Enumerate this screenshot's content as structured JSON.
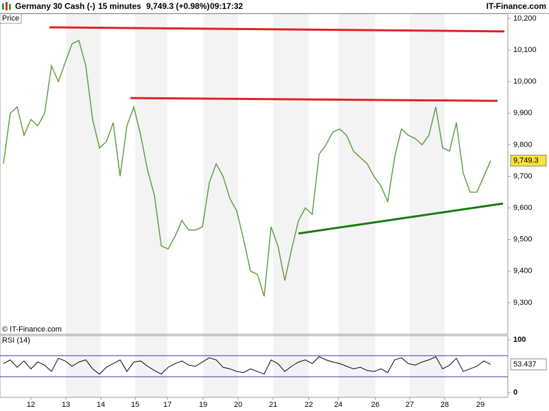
{
  "header": {
    "instrument": "Germany 30 Cash (-)",
    "interval": "15 minutes",
    "quote": "9,749.3 (+0.98%)",
    "time": "09:17:32",
    "brand": "IT-Finance.com",
    "copyright": "© IT-Finance.com"
  },
  "chart_data": [
    {
      "type": "line",
      "title": "Price",
      "color": "#5f9f3f",
      "values": [
        9740,
        9900,
        9920,
        9830,
        9880,
        9860,
        9900,
        10050,
        10000,
        10060,
        10120,
        10130,
        10050,
        9880,
        9790,
        9810,
        9870,
        9700,
        9860,
        9920,
        9830,
        9720,
        9640,
        9480,
        9470,
        9510,
        9560,
        9530,
        9530,
        9540,
        9680,
        9740,
        9700,
        9630,
        9590,
        9500,
        9400,
        9390,
        9320,
        9540,
        9480,
        9370,
        9470,
        9560,
        9600,
        9580,
        9770,
        9800,
        9840,
        9850,
        9830,
        9780,
        9760,
        9740,
        9700,
        9670,
        9620,
        9760,
        9850,
        9830,
        9820,
        9800,
        9830,
        9920,
        9790,
        9780,
        9870,
        9710,
        9650,
        9650,
        9700,
        9750
      ],
      "last_label": "9,749.3",
      "xlim": [
        -0.5,
        73.5
      ],
      "ylim": [
        9200,
        10215
      ],
      "yticks": [
        {
          "value": 9300,
          "label": "9,300"
        },
        {
          "value": 9400,
          "label": "9,400"
        },
        {
          "value": 9500,
          "label": "9,500"
        },
        {
          "value": 9600,
          "label": "9,600"
        },
        {
          "value": 9700,
          "label": "9,700"
        },
        {
          "value": 9800,
          "label": "9,800"
        },
        {
          "value": 9900,
          "label": "9,900"
        },
        {
          "value": 10000,
          "label": "10,000"
        },
        {
          "value": 10100,
          "label": "10,100"
        },
        {
          "value": 10200,
          "label": "10,200"
        }
      ],
      "trend_lines": [
        {
          "color": "#e02020",
          "x": [
            6.7,
            73
          ],
          "y": [
            10172,
            10159
          ]
        },
        {
          "color": "#e02020",
          "x": [
            18.5,
            72
          ],
          "y": [
            9948,
            9939
          ]
        },
        {
          "color": "#1a7a10",
          "x": [
            43,
            72.8
          ],
          "y": [
            9519,
            9614
          ]
        }
      ]
    },
    {
      "type": "line",
      "title": "RSI (14)",
      "color": "#000000",
      "level_color": "#3a3aa0",
      "values": [
        55,
        62,
        48,
        60,
        45,
        58,
        52,
        40,
        65,
        60,
        50,
        58,
        62,
        45,
        35,
        48,
        55,
        62,
        40,
        58,
        60,
        50,
        42,
        35,
        48,
        55,
        60,
        52,
        50,
        58,
        66,
        62,
        48,
        45,
        40,
        38,
        45,
        40,
        35,
        62,
        55,
        40,
        50,
        58,
        62,
        55,
        68,
        62,
        58,
        55,
        50,
        45,
        48,
        42,
        40,
        45,
        38,
        62,
        66,
        55,
        52,
        58,
        62,
        68,
        45,
        52,
        65,
        40,
        45,
        50,
        60,
        53.437
      ],
      "last_label": "53.437",
      "levels": [
        70,
        30
      ],
      "xlim": [
        -0.5,
        73.5
      ],
      "ylim": [
        -9,
        108
      ],
      "yticks": [
        0,
        100
      ],
      "xticks": [
        {
          "value": 4,
          "label": "12"
        },
        {
          "value": 9.1,
          "label": "13"
        },
        {
          "value": 14.2,
          "label": "14"
        },
        {
          "value": 19.2,
          "label": "15"
        },
        {
          "value": 23.9,
          "label": "17"
        },
        {
          "value": 29.1,
          "label": "19"
        },
        {
          "value": 34.2,
          "label": "20"
        },
        {
          "value": 39.3,
          "label": "21"
        },
        {
          "value": 44.5,
          "label": "22"
        },
        {
          "value": 48.8,
          "label": "24"
        },
        {
          "value": 54.2,
          "label": "26"
        },
        {
          "value": 59.2,
          "label": "27"
        },
        {
          "value": 64.3,
          "label": "28"
        },
        {
          "value": 69.5,
          "label": "29"
        }
      ]
    }
  ]
}
